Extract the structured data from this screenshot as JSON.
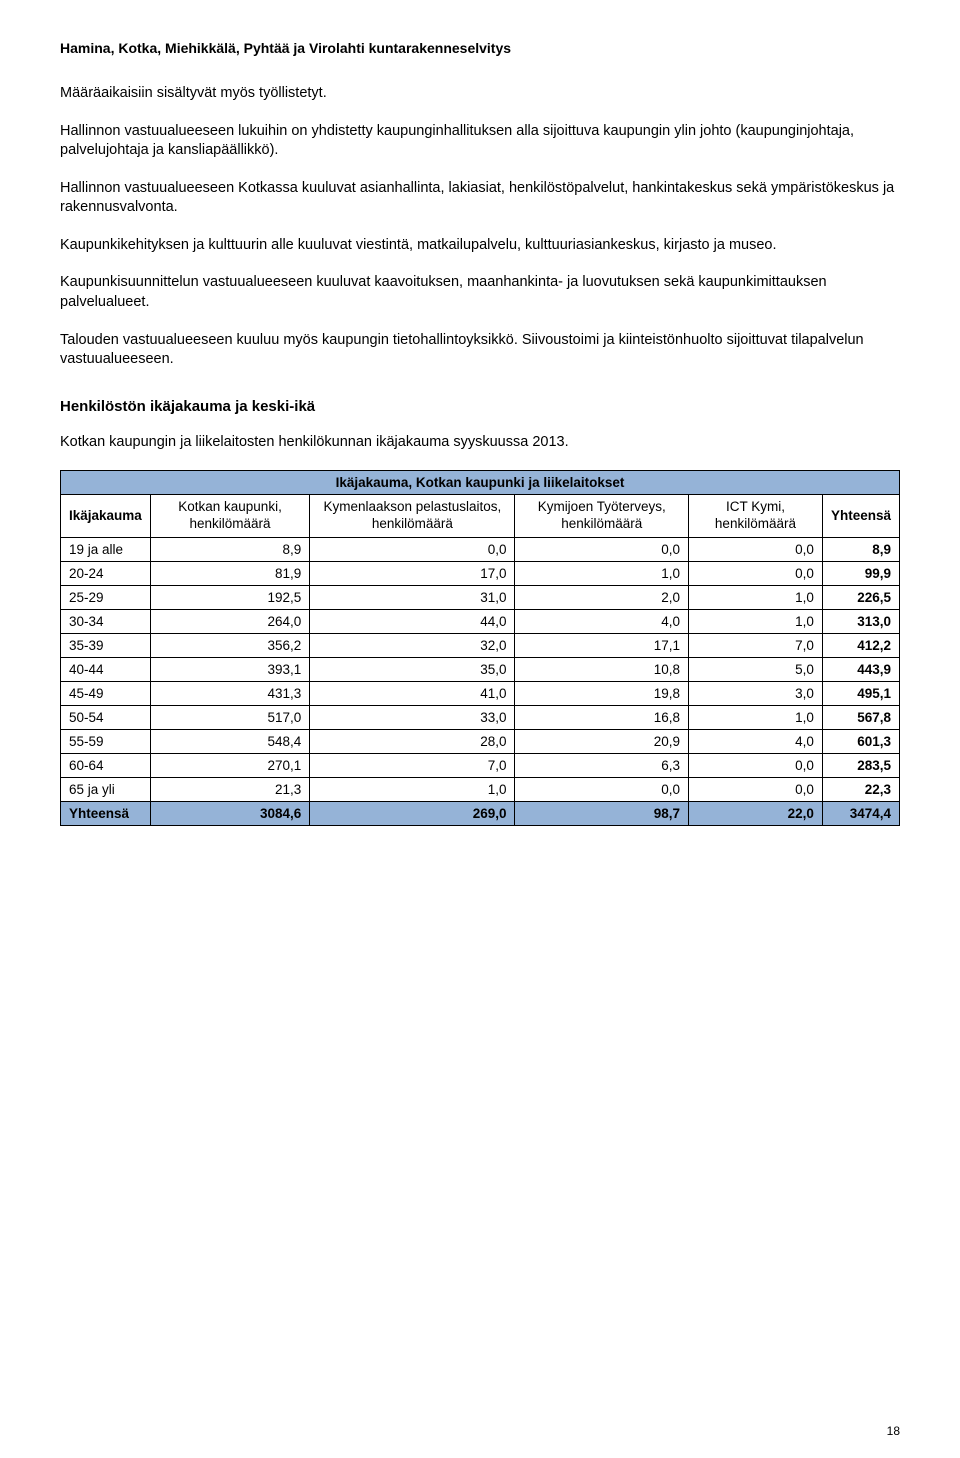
{
  "header": "Hamina, Kotka, Miehikkälä, Pyhtää ja Virolahti kuntarakenneselvitys",
  "paragraphs": {
    "p1": "Määräaikaisiin sisältyvät myös työllistetyt.",
    "p2": "Hallinnon vastuualueeseen lukuihin on yhdistetty kaupunginhallituksen alla sijoittuva kaupungin ylin johto (kaupunginjohtaja, palvelujohtaja ja kansliapäällikkö).",
    "p3": "Hallinnon vastuualueeseen Kotkassa kuuluvat asianhallinta, lakiasiat, henkilöstöpalvelut, hankintakeskus sekä ympäristökeskus ja rakennusvalvonta.",
    "p4": "Kaupunkikehityksen ja kulttuurin alle kuuluvat viestintä, matkailupalvelu, kulttuuriasiankeskus, kirjasto ja museo.",
    "p5": "Kaupunkisuunnittelun vastuualueeseen kuuluvat kaavoituksen, maanhankinta- ja luovutuksen sekä kaupunkimittauksen palvelualueet.",
    "p6": "Talouden vastuualueeseen kuuluu myös kaupungin tietohallintoyksikkö. Siivoustoimi ja kiinteistönhuolto sijoittuvat tilapalvelun vastuualueeseen."
  },
  "section_title": "Henkilöstön ikäjakauma ja keski-ikä",
  "subtitle": "Kotkan kaupungin ja liikelaitosten henkilökunnan ikäjakauma syyskuussa 2013.",
  "table": {
    "title": "Ikäjakauma, Kotkan kaupunki ja liikelaitokset",
    "columns": [
      "Ikäjakauma",
      "Kotkan kaupunki, henkilömäärä",
      "Kymenlaakson pelastuslaitos, henkilömäärä",
      "Kymijoen Työterveys, henkilömäärä",
      "ICT Kymi, henkilömäärä",
      "Yhteensä"
    ],
    "rows": [
      [
        "19 ja alle",
        "8,9",
        "0,0",
        "0,0",
        "0,0",
        "8,9"
      ],
      [
        "20-24",
        "81,9",
        "17,0",
        "1,0",
        "0,0",
        "99,9"
      ],
      [
        "25-29",
        "192,5",
        "31,0",
        "2,0",
        "1,0",
        "226,5"
      ],
      [
        "30-34",
        "264,0",
        "44,0",
        "4,0",
        "1,0",
        "313,0"
      ],
      [
        "35-39",
        "356,2",
        "32,0",
        "17,1",
        "7,0",
        "412,2"
      ],
      [
        "40-44",
        "393,1",
        "35,0",
        "10,8",
        "5,0",
        "443,9"
      ],
      [
        "45-49",
        "431,3",
        "41,0",
        "19,8",
        "3,0",
        "495,1"
      ],
      [
        "50-54",
        "517,0",
        "33,0",
        "16,8",
        "1,0",
        "567,8"
      ],
      [
        "55-59",
        "548,4",
        "28,0",
        "20,9",
        "4,0",
        "601,3"
      ],
      [
        "60-64",
        "270,1",
        "7,0",
        "6,3",
        "0,0",
        "283,5"
      ],
      [
        "65 ja yli",
        "21,3",
        "1,0",
        "0,0",
        "0,0",
        "22,3"
      ]
    ],
    "total_row": [
      "Yhteensä",
      "3084,6",
      "269,0",
      "98,7",
      "22,0",
      "3474,4"
    ]
  },
  "colors": {
    "header_bg": "#95b3d7",
    "border": "#000000",
    "text": "#000000",
    "page_bg": "#ffffff"
  },
  "page_number": "18"
}
